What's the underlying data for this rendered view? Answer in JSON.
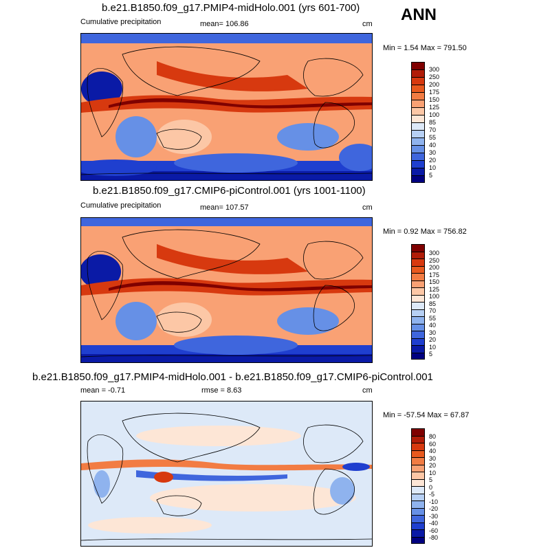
{
  "season": "ANN",
  "chart_data": [
    {
      "type": "heatmap",
      "title": "b.e21.B1850.f09_g17.PMIP4-midHolo.001 (yrs 601-700)",
      "left_label": "Cumulative precipitation",
      "mean_label": "mean= 106.86",
      "units": "cm",
      "minmax": "Min =   1.54 Max = 791.50",
      "min": 1.54,
      "max": 791.5,
      "mean": 106.86,
      "colorbar_levels": [
        "300",
        "250",
        "200",
        "175",
        "150",
        "125",
        "100",
        "85",
        "70",
        "55",
        "40",
        "30",
        "20",
        "10",
        "5"
      ],
      "colorbar_colors": [
        "#7f0000",
        "#b11c08",
        "#d7390f",
        "#e8591e",
        "#f27c43",
        "#f9a174",
        "#fcc7a6",
        "#fde6d6",
        "#dde9f8",
        "#b7d0f4",
        "#8fb3ee",
        "#6690e6",
        "#3f66dd",
        "#1f3fcf",
        "#0a1aa6",
        "#000080"
      ]
    },
    {
      "type": "heatmap",
      "title": "b.e21.B1850.f09_g17.CMIP6-piControl.001 (yrs 1001-1100)",
      "left_label": "Cumulative precipitation",
      "mean_label": "mean= 107.57",
      "units": "cm",
      "minmax": "Min =   0.92 Max = 756.82",
      "min": 0.92,
      "max": 756.82,
      "mean": 107.57,
      "colorbar_levels": [
        "300",
        "250",
        "200",
        "175",
        "150",
        "125",
        "100",
        "85",
        "70",
        "55",
        "40",
        "30",
        "20",
        "10",
        "5"
      ],
      "colorbar_colors": [
        "#7f0000",
        "#b11c08",
        "#d7390f",
        "#e8591e",
        "#f27c43",
        "#f9a174",
        "#fcc7a6",
        "#fde6d6",
        "#dde9f8",
        "#b7d0f4",
        "#8fb3ee",
        "#6690e6",
        "#3f66dd",
        "#1f3fcf",
        "#0a1aa6",
        "#000080"
      ]
    },
    {
      "type": "heatmap",
      "title": "b.e21.B1850.f09_g17.PMIP4-midHolo.001 - b.e21.B1850.f09_g17.CMIP6-piControl.001",
      "mean_label": "mean =  -0.71",
      "rmse_label": "rmse =   8.63",
      "units": "cm",
      "minmax": "Min = -57.54 Max =  67.87",
      "min": -57.54,
      "max": 67.87,
      "mean": -0.71,
      "rmse": 8.63,
      "colorbar_levels": [
        "80",
        "60",
        "40",
        "30",
        "20",
        "10",
        "5",
        "0",
        "-5",
        "-10",
        "-20",
        "-30",
        "-40",
        "-60",
        "-80"
      ],
      "colorbar_colors": [
        "#7f0000",
        "#b11c08",
        "#d7390f",
        "#e8591e",
        "#f27c43",
        "#f9a174",
        "#fcc7a6",
        "#fde6d6",
        "#dde9f8",
        "#b7d0f4",
        "#8fb3ee",
        "#6690e6",
        "#3f66dd",
        "#1f3fcf",
        "#0a1aa6",
        "#000080"
      ]
    }
  ]
}
